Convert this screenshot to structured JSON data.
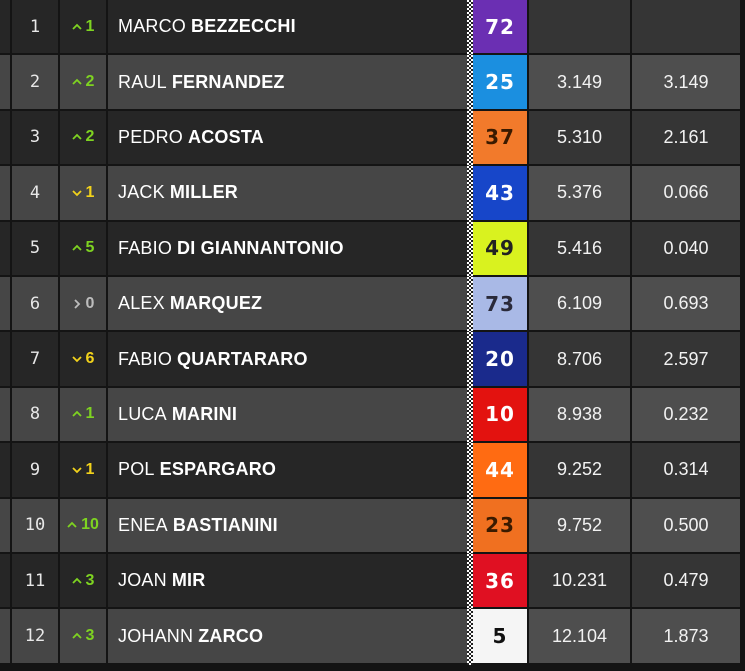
{
  "rows": [
    {
      "position": "1",
      "trend": "up",
      "change": "1",
      "first_name": "MARCO",
      "last_name": "BEZZECCHI",
      "number": "72",
      "bike_color": "#6b2fb3",
      "number_color": "#ffffff",
      "gap": null,
      "interval": null
    },
    {
      "position": "2",
      "trend": "up",
      "change": "2",
      "first_name": "RAUL",
      "last_name": "FERNANDEZ",
      "number": "25",
      "bike_color": "#1b8fe0",
      "number_color": "#ffffff",
      "gap": "3.149",
      "interval": "3.149"
    },
    {
      "position": "3",
      "trend": "up",
      "change": "2",
      "first_name": "PEDRO",
      "last_name": "ACOSTA",
      "number": "37",
      "bike_color": "#f27a2b",
      "number_color": "#3a1a00",
      "gap": "5.310",
      "interval": "2.161"
    },
    {
      "position": "4",
      "trend": "down",
      "change": "1",
      "first_name": "JACK",
      "last_name": "MILLER",
      "number": "43",
      "bike_color": "#1746c9",
      "number_color": "#ffffff",
      "gap": "5.376",
      "interval": "0.066"
    },
    {
      "position": "5",
      "trend": "up",
      "change": "5",
      "first_name": "FABIO",
      "last_name": "DI GIANNANTONIO",
      "number": "49",
      "bike_color": "#d9f21f",
      "number_color": "#222222",
      "gap": "5.416",
      "interval": "0.040"
    },
    {
      "position": "6",
      "trend": "same",
      "change": "0",
      "first_name": "ALEX",
      "last_name": "MARQUEZ",
      "number": "73",
      "bike_color": "#a9b9e6",
      "number_color": "#2a2a3a",
      "gap": "6.109",
      "interval": "0.693"
    },
    {
      "position": "7",
      "trend": "down",
      "change": "6",
      "first_name": "FABIO",
      "last_name": "QUARTARARO",
      "number": "20",
      "bike_color": "#1a2a8c",
      "number_color": "#ffffff",
      "gap": "8.706",
      "interval": "2.597"
    },
    {
      "position": "8",
      "trend": "up",
      "change": "1",
      "first_name": "LUCA",
      "last_name": "MARINI",
      "number": "10",
      "bike_color": "#e3120f",
      "number_color": "#ffffff",
      "gap": "8.938",
      "interval": "0.232"
    },
    {
      "position": "9",
      "trend": "down",
      "change": "1",
      "first_name": "POL",
      "last_name": "ESPARGARO",
      "number": "44",
      "bike_color": "#ff6b12",
      "number_color": "#ffffff",
      "gap": "9.252",
      "interval": "0.314"
    },
    {
      "position": "10",
      "trend": "up",
      "change": "10",
      "first_name": "ENEA",
      "last_name": "BASTIANINI",
      "number": "23",
      "bike_color": "#f07020",
      "number_color": "#3a1a00",
      "gap": "9.752",
      "interval": "0.500"
    },
    {
      "position": "11",
      "trend": "up",
      "change": "3",
      "first_name": "JOAN",
      "last_name": "MIR",
      "number": "36",
      "bike_color": "#e01022",
      "number_color": "#ffffff",
      "gap": "10.231",
      "interval": "0.479"
    },
    {
      "position": "12",
      "trend": "up",
      "change": "3",
      "first_name": "JOHANN",
      "last_name": "ZARCO",
      "number": "5",
      "bike_color": "#f5f5f5",
      "number_color": "#111111",
      "gap": "12.104",
      "interval": "1.873"
    }
  ]
}
